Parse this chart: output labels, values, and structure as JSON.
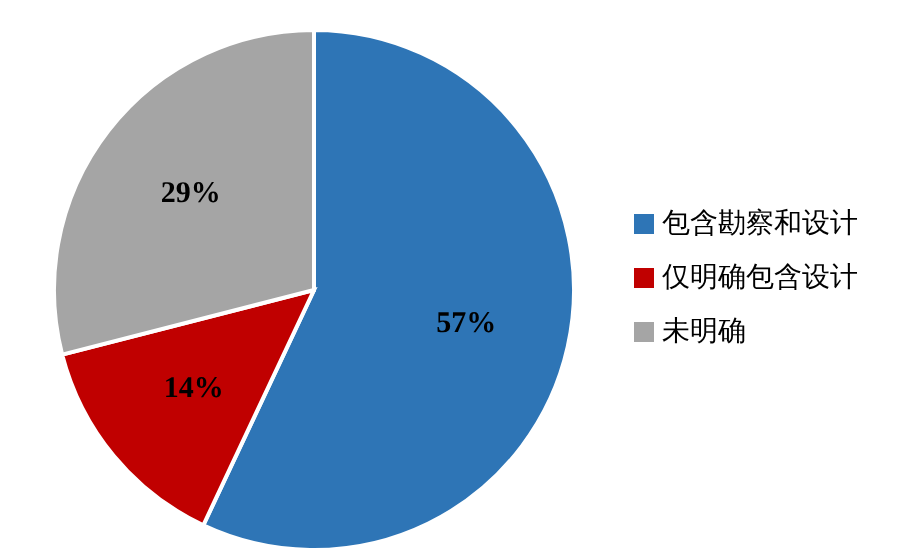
{
  "chart_data": {
    "type": "pie",
    "categories": [
      "包含勘察和设计",
      "仅明确包含设计",
      "未明确"
    ],
    "values": [
      57,
      14,
      29
    ],
    "colors": [
      "#2e75b6",
      "#c00000",
      "#a5a5a5"
    ],
    "value_labels": [
      "57%",
      "14%",
      "29%"
    ],
    "legend": "right"
  }
}
